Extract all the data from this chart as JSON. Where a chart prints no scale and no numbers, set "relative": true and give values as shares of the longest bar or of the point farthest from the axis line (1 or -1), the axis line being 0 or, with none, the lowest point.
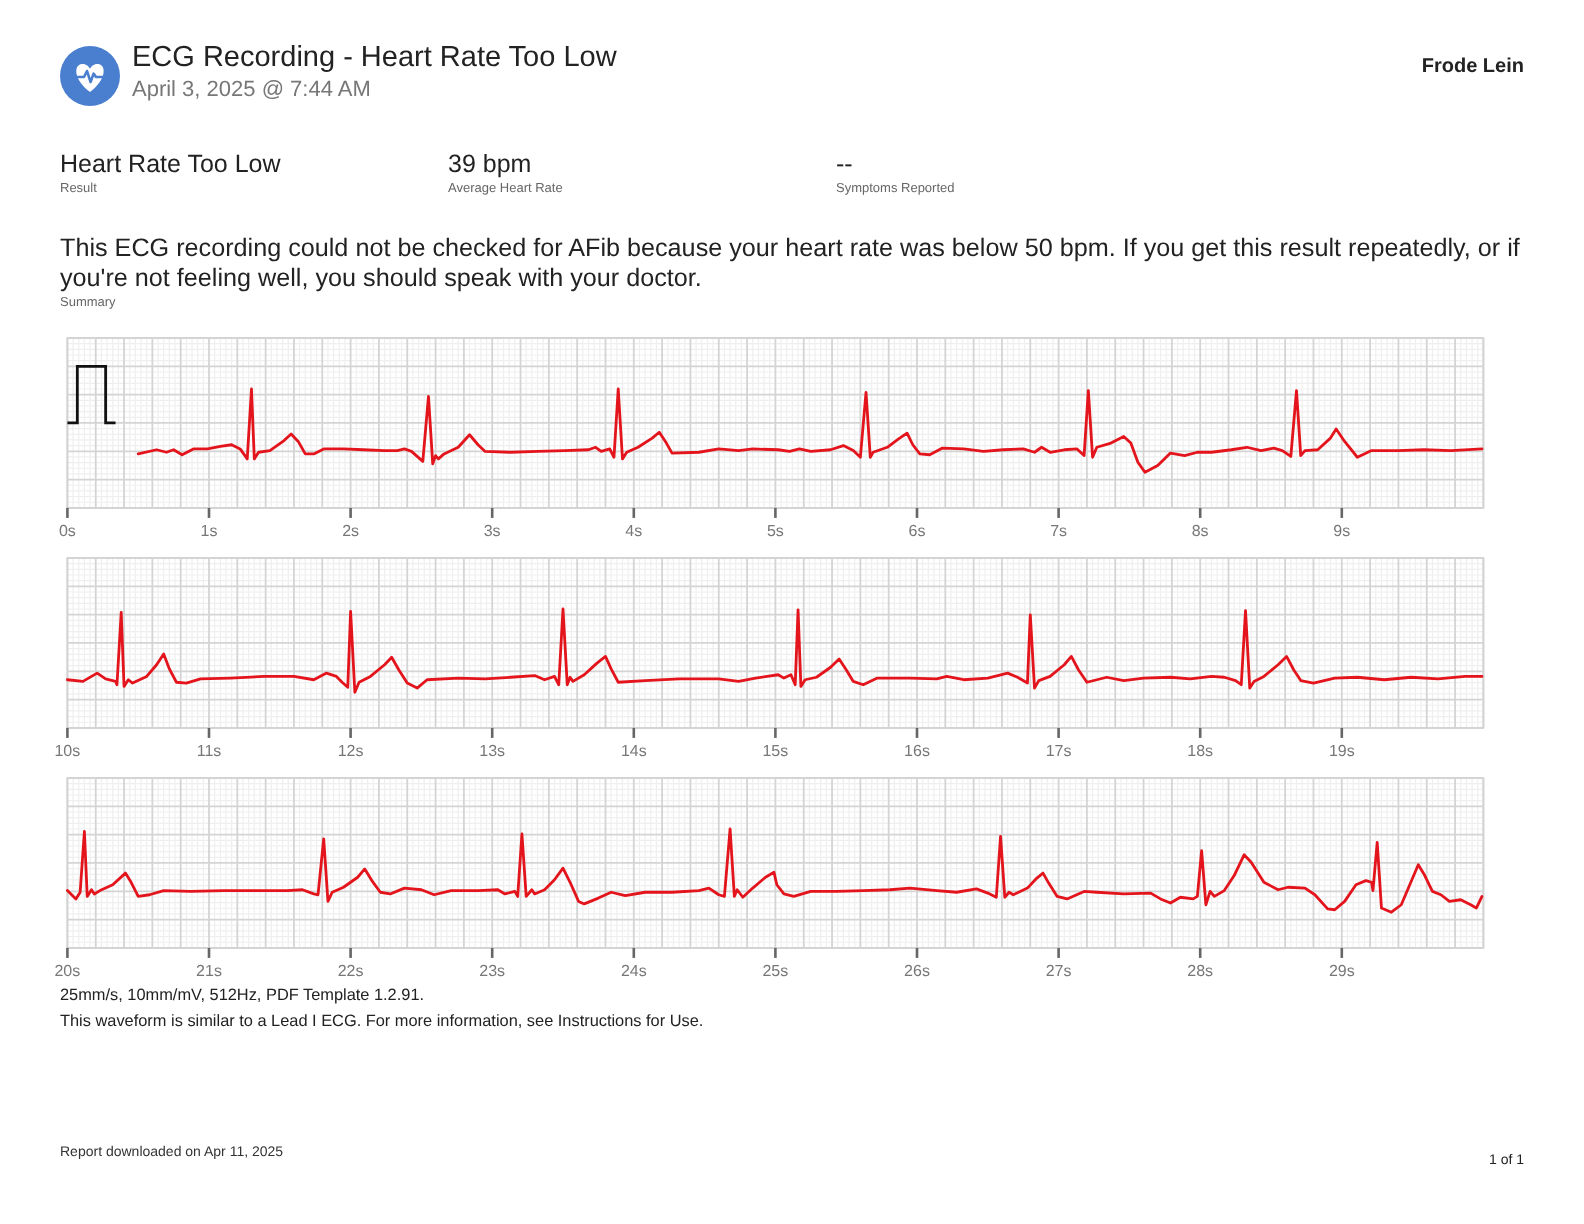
{
  "chart_data": [
    {
      "type": "line",
      "title": "ECG Recording - Heart Rate Too Low",
      "subtitle": "April 3, 2025 @ 7:44 AM",
      "annotations": [
        "Frode Lein",
        "Heart Rate Too Low",
        "Result",
        "39 bpm",
        "Average Heart Rate",
        "--",
        "Symptoms Reported",
        "This ECG recording could not be checked for AFib because your heart rate was below 50 bpm. If you get this result repeatedly, or if you're not feeling well, you should speak with your doctor.",
        "Summary"
      ],
      "relative": true,
      "color": "#e3141b",
      "grid": true,
      "xlim": [
        0,
        10
      ],
      "xticks": [
        {
          "value": 0,
          "label": "0s"
        },
        {
          "value": 1,
          "label": "1s"
        },
        {
          "value": 2,
          "label": "2s"
        },
        {
          "value": 3,
          "label": "3s"
        },
        {
          "value": 4,
          "label": "4s"
        },
        {
          "value": 5,
          "label": "5s"
        },
        {
          "value": 6,
          "label": "6s"
        },
        {
          "value": 7,
          "label": "7s"
        },
        {
          "value": 8,
          "label": "8s"
        },
        {
          "value": 9,
          "label": "9s"
        }
      ],
      "x": [
        0.5,
        0.63,
        0.7,
        0.75,
        0.81,
        0.89,
        0.99,
        1.08,
        1.16,
        1.22,
        1.27,
        1.3,
        1.32,
        1.35,
        1.43,
        1.53,
        1.58,
        1.63,
        1.68,
        1.74,
        1.81,
        1.95,
        2.09,
        2.24,
        2.33,
        2.38,
        2.43,
        2.51,
        2.55,
        2.58,
        2.6,
        2.62,
        2.66,
        2.76,
        2.84,
        2.9,
        2.95,
        3.13,
        3.32,
        3.51,
        3.68,
        3.73,
        3.77,
        3.83,
        3.86,
        3.89,
        3.92,
        3.95,
        4.03,
        4.13,
        4.18,
        4.23,
        4.27,
        4.46,
        4.6,
        4.74,
        4.84,
        5.02,
        5.1,
        5.17,
        5.25,
        5.39,
        5.48,
        5.55,
        5.6,
        5.64,
        5.67,
        5.69,
        5.79,
        5.87,
        5.93,
        5.97,
        6.02,
        6.09,
        6.18,
        6.33,
        6.47,
        6.61,
        6.75,
        6.83,
        6.88,
        6.94,
        7.04,
        7.13,
        7.18,
        7.21,
        7.24,
        7.27,
        7.37,
        7.46,
        7.51,
        7.56,
        7.61,
        7.7,
        7.79,
        7.89,
        7.98,
        8.08,
        8.22,
        8.33,
        8.43,
        8.52,
        8.58,
        8.64,
        8.68,
        8.71,
        8.74,
        8.83,
        8.92,
        8.96,
        9.02,
        9.11,
        9.21,
        9.4,
        9.58,
        9.77,
        9.99
      ],
      "values": [
        0.22,
        0.27,
        0.24,
        0.27,
        0.21,
        0.28,
        0.28,
        0.31,
        0.33,
        0.28,
        0.16,
        1,
        0.16,
        0.24,
        0.26,
        0.38,
        0.46,
        0.37,
        0.22,
        0.22,
        0.28,
        0.28,
        0.27,
        0.26,
        0.26,
        0.28,
        0.25,
        0.13,
        0.91,
        0.1,
        0.2,
        0.16,
        0.22,
        0.3,
        0.45,
        0.33,
        0.25,
        0.24,
        0.25,
        0.26,
        0.27,
        0.3,
        0.25,
        0.28,
        0.18,
        1,
        0.16,
        0.24,
        0.3,
        0.41,
        0.48,
        0.35,
        0.23,
        0.24,
        0.28,
        0.26,
        0.28,
        0.27,
        0.25,
        0.28,
        0.25,
        0.27,
        0.32,
        0.26,
        0.18,
        0.96,
        0.18,
        0.24,
        0.3,
        0.4,
        0.47,
        0.33,
        0.22,
        0.21,
        0.29,
        0.28,
        0.25,
        0.27,
        0.28,
        0.24,
        0.3,
        0.24,
        0.27,
        0.28,
        0.2,
        0.98,
        0.18,
        0.3,
        0.35,
        0.43,
        0.35,
        0.12,
        0,
        0.08,
        0.23,
        0.2,
        0.24,
        0.24,
        0.27,
        0.3,
        0.26,
        0.29,
        0.26,
        0.19,
        0.98,
        0.2,
        0.26,
        0.27,
        0.41,
        0.52,
        0.37,
        0.18,
        0.26,
        0.26,
        0.27,
        0.26,
        0.28
      ]
    },
    {
      "type": "line",
      "relative": true,
      "color": "#e3141b",
      "grid": true,
      "xlim": [
        10,
        20
      ],
      "xticks": [
        {
          "value": 10,
          "label": "10s"
        },
        {
          "value": 11,
          "label": "11s"
        },
        {
          "value": 12,
          "label": "12s"
        },
        {
          "value": 13,
          "label": "13s"
        },
        {
          "value": 14,
          "label": "14s"
        },
        {
          "value": 15,
          "label": "15s"
        },
        {
          "value": 16,
          "label": "16s"
        },
        {
          "value": 17,
          "label": "17s"
        },
        {
          "value": 18,
          "label": "18s"
        },
        {
          "value": 19,
          "label": "19s"
        }
      ],
      "x": [
        10,
        10.11,
        10.21,
        10.27,
        10.34,
        10.35,
        10.38,
        10.4,
        10.43,
        10.46,
        10.56,
        10.63,
        10.68,
        10.72,
        10.77,
        10.84,
        10.94,
        11.15,
        11.39,
        11.6,
        11.74,
        11.83,
        11.9,
        11.94,
        11.98,
        12,
        12.03,
        12.06,
        12.14,
        12.24,
        12.29,
        12.34,
        12.4,
        12.47,
        12.54,
        12.76,
        12.95,
        13.13,
        13.3,
        13.37,
        13.44,
        13.47,
        13.5,
        13.53,
        13.55,
        13.57,
        13.65,
        13.74,
        13.8,
        13.84,
        13.89,
        14.08,
        14.32,
        14.6,
        14.74,
        14.86,
        15.02,
        15.06,
        15.11,
        15.14,
        15.16,
        15.18,
        15.21,
        15.29,
        15.39,
        15.45,
        15.5,
        15.55,
        15.62,
        15.72,
        15.95,
        16.14,
        16.21,
        16.33,
        16.5,
        16.64,
        16.71,
        16.78,
        16.8,
        16.83,
        16.86,
        16.94,
        17.04,
        17.09,
        17.14,
        17.2,
        17.34,
        17.46,
        17.6,
        17.79,
        17.93,
        18.08,
        18.17,
        18.25,
        18.29,
        18.32,
        18.35,
        18.38,
        18.45,
        18.55,
        18.61,
        18.66,
        18.71,
        18.8,
        18.95,
        19.11,
        19.3,
        19.49,
        19.68,
        19.87,
        19.99
      ],
      "values": [
        0.15,
        0.13,
        0.23,
        0.16,
        0.13,
        0.09,
        0.96,
        0.07,
        0.15,
        0.11,
        0.19,
        0.33,
        0.46,
        0.28,
        0.12,
        0.11,
        0.16,
        0.17,
        0.19,
        0.19,
        0.15,
        0.23,
        0.19,
        0.12,
        0.06,
        0.97,
        0,
        0.12,
        0.19,
        0.33,
        0.42,
        0.27,
        0.11,
        0.05,
        0.15,
        0.17,
        0.16,
        0.18,
        0.2,
        0.15,
        0.19,
        0.09,
        1,
        0.09,
        0.18,
        0.13,
        0.21,
        0.35,
        0.43,
        0.28,
        0.12,
        0.14,
        0.16,
        0.16,
        0.13,
        0.17,
        0.21,
        0.17,
        0.21,
        0.09,
        0.99,
        0.07,
        0.15,
        0.18,
        0.3,
        0.4,
        0.27,
        0.13,
        0.09,
        0.17,
        0.17,
        0.16,
        0.19,
        0.15,
        0.17,
        0.23,
        0.18,
        0.11,
        0.93,
        0.05,
        0.14,
        0.19,
        0.33,
        0.43,
        0.27,
        0.12,
        0.18,
        0.14,
        0.17,
        0.18,
        0.16,
        0.19,
        0.18,
        0.14,
        0.09,
        0.98,
        0.05,
        0.13,
        0.19,
        0.33,
        0.43,
        0.27,
        0.14,
        0.11,
        0.17,
        0.18,
        0.15,
        0.18,
        0.16,
        0.19,
        0.19
      ]
    },
    {
      "type": "line",
      "relative": true,
      "color": "#e3141b",
      "grid": true,
      "xlim": [
        20,
        30
      ],
      "xticks": [
        {
          "value": 20,
          "label": "20s"
        },
        {
          "value": 21,
          "label": "21s"
        },
        {
          "value": 22,
          "label": "22s"
        },
        {
          "value": 23,
          "label": "23s"
        },
        {
          "value": 24,
          "label": "24s"
        },
        {
          "value": 25,
          "label": "25s"
        },
        {
          "value": 26,
          "label": "26s"
        },
        {
          "value": 27,
          "label": "27s"
        },
        {
          "value": 28,
          "label": "28s"
        },
        {
          "value": 29,
          "label": "29s"
        }
      ],
      "x": [
        20,
        20.06,
        20.09,
        20.12,
        20.14,
        20.17,
        20.19,
        20.23,
        20.32,
        20.41,
        20.45,
        20.5,
        20.58,
        20.68,
        20.87,
        21.1,
        21.34,
        21.55,
        21.66,
        21.74,
        21.77,
        21.81,
        21.84,
        21.87,
        21.95,
        22.05,
        22.1,
        22.15,
        22.21,
        22.28,
        22.38,
        22.5,
        22.59,
        22.71,
        22.9,
        23.04,
        23.09,
        23.16,
        23.18,
        23.21,
        23.24,
        23.28,
        23.3,
        23.37,
        23.44,
        23.5,
        23.55,
        23.61,
        23.65,
        23.75,
        23.84,
        23.94,
        24.08,
        24.27,
        24.46,
        24.53,
        24.6,
        24.64,
        24.68,
        24.71,
        24.73,
        24.77,
        24.84,
        24.93,
        24.99,
        25.01,
        25.06,
        25.13,
        25.25,
        25.43,
        25.62,
        25.81,
        25.95,
        26.14,
        26.28,
        26.42,
        26.5,
        26.56,
        26.59,
        26.62,
        26.65,
        26.68,
        26.78,
        26.84,
        26.89,
        26.93,
        26.99,
        27.06,
        27.18,
        27.27,
        27.46,
        27.65,
        27.72,
        27.79,
        27.86,
        27.95,
        27.98,
        28.01,
        28.04,
        28.07,
        28.1,
        28.17,
        28.24,
        28.31,
        28.36,
        28.45,
        28.55,
        28.62,
        28.74,
        28.81,
        28.9,
        28.95,
        29.02,
        29.1,
        29.17,
        29.21,
        29.22,
        29.25,
        29.28,
        29.35,
        29.42,
        29.48,
        29.54,
        29.58,
        29.64,
        29.7,
        29.76,
        29.84,
        29.91,
        29.95,
        29.99
      ],
      "values": [
        0.26,
        0.16,
        0.24,
        0.97,
        0.19,
        0.27,
        0.22,
        0.26,
        0.33,
        0.47,
        0.36,
        0.19,
        0.21,
        0.26,
        0.25,
        0.26,
        0.26,
        0.26,
        0.27,
        0.22,
        0.21,
        0.88,
        0.13,
        0.24,
        0.3,
        0.42,
        0.52,
        0.38,
        0.24,
        0.22,
        0.29,
        0.27,
        0.21,
        0.26,
        0.26,
        0.27,
        0.22,
        0.25,
        0.19,
        0.94,
        0.19,
        0.27,
        0.22,
        0.27,
        0.39,
        0.53,
        0.36,
        0.13,
        0.1,
        0.17,
        0.24,
        0.2,
        0.24,
        0.24,
        0.26,
        0.29,
        0.21,
        0.19,
        1,
        0.19,
        0.27,
        0.18,
        0.29,
        0.42,
        0.48,
        0.33,
        0.22,
        0.19,
        0.25,
        0.25,
        0.26,
        0.27,
        0.29,
        0.26,
        0.24,
        0.28,
        0.23,
        0.18,
        0.91,
        0.18,
        0.24,
        0.21,
        0.29,
        0.4,
        0.47,
        0.35,
        0.19,
        0.16,
        0.25,
        0.24,
        0.22,
        0.23,
        0.16,
        0.11,
        0.18,
        0.16,
        0.19,
        0.74,
        0.09,
        0.25,
        0.19,
        0.26,
        0.44,
        0.69,
        0.6,
        0.36,
        0.27,
        0.3,
        0.29,
        0.21,
        0.04,
        0.03,
        0.13,
        0.33,
        0.38,
        0.36,
        0.26,
        0.84,
        0.05,
        0,
        0.09,
        0.33,
        0.57,
        0.46,
        0.25,
        0.21,
        0.13,
        0.15,
        0.09,
        0.05,
        0.19
      ],
      "annotations": [
        "25mm/s, 10mm/mV, 512Hz, PDF Template 1.2.91.",
        "This waveform is similar to a Lead I ECG. For more information, see Instructions for Use.",
        "Report downloaded on Apr 11, 2025",
        "1 of 1"
      ]
    }
  ]
}
